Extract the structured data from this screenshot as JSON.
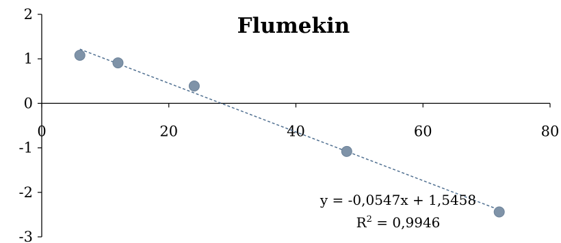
{
  "chart_data": {
    "type": "scatter",
    "title": "Flumekin",
    "xlabel": "",
    "ylabel": "",
    "xlim": [
      0,
      80
    ],
    "ylim": [
      -3,
      2
    ],
    "x_ticks": [
      "0",
      "20",
      "40",
      "60",
      "80"
    ],
    "y_ticks": [
      "2",
      "1",
      "0",
      "-1",
      "-2",
      "-3"
    ],
    "grid": false,
    "legend": "none",
    "series": [
      {
        "x": [
          6,
          12,
          24,
          48,
          72
        ],
        "y": [
          1.08,
          0.91,
          0.39,
          -1.08,
          -2.44
        ],
        "color": "#7f93a8"
      }
    ],
    "trendline": {
      "slope": -0.0547,
      "intercept": 1.5458,
      "x_range": [
        6,
        72
      ],
      "color": "#4f6f90",
      "equation": "y = -0,0547x + 1,5458",
      "r2_prefix": "R",
      "r2_exponent": "2",
      "r2_value": " = 0,9946"
    }
  }
}
